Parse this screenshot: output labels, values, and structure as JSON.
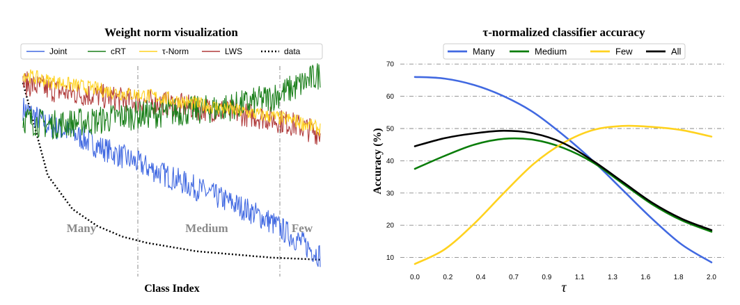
{
  "chart_data": [
    {
      "type": "line",
      "title": "Weight norm visualization",
      "xlabel": "Class Index",
      "ylabel": "",
      "legend": [
        "Joint",
        "cRT",
        "τ-Norm",
        "LWS",
        "data"
      ],
      "legend_position": "top",
      "regions": [
        "Many",
        "Medium",
        "Few"
      ],
      "colors": {
        "Joint": "#4169e1",
        "cRT": "#1a7f1a",
        "τ-Norm": "#ffd21f",
        "LWS": "#b03a3a",
        "data": "#000000"
      },
      "series": [
        {
          "name": "Joint",
          "trend": [
            0.8,
            0.72,
            0.68,
            0.62,
            0.57,
            0.52,
            0.47,
            0.42,
            0.37,
            0.32,
            0.26,
            0.18,
            0.1
          ],
          "noise": 0.06
        },
        {
          "name": "cRT",
          "trend": [
            0.75,
            0.72,
            0.73,
            0.74,
            0.76,
            0.77,
            0.78,
            0.79,
            0.8,
            0.82,
            0.85,
            0.9,
            0.96
          ],
          "noise": 0.07
        },
        {
          "name": "τ-Norm",
          "trend": [
            0.96,
            0.93,
            0.91,
            0.89,
            0.87,
            0.86,
            0.84,
            0.82,
            0.8,
            0.78,
            0.76,
            0.74,
            0.7
          ],
          "noise": 0.035
        },
        {
          "name": "LWS",
          "trend": [
            0.92,
            0.89,
            0.87,
            0.86,
            0.84,
            0.83,
            0.82,
            0.8,
            0.79,
            0.77,
            0.75,
            0.72,
            0.68
          ],
          "noise": 0.06
        },
        {
          "name": "data",
          "trend": [
            0.92,
            0.48,
            0.32,
            0.24,
            0.19,
            0.16,
            0.14,
            0.12,
            0.11,
            0.1,
            0.09,
            0.085,
            0.08
          ],
          "noise": 0
        }
      ]
    },
    {
      "type": "line",
      "title": "τ-normalized classifier accuracy",
      "xlabel": "τ",
      "ylabel": "Accuracy (%)",
      "legend_position": "top",
      "grid": true,
      "xlim": [
        0.0,
        2.0
      ],
      "ylim": [
        7,
        72
      ],
      "xticks": [
        "0.0",
        "0.2",
        "0.4",
        "0.7",
        "0.9",
        "1.1",
        "1.3",
        "1.6",
        "1.8",
        "2.0"
      ],
      "yticks": [
        "10",
        "20",
        "30",
        "40",
        "50",
        "60",
        "70"
      ],
      "x": [
        0.0,
        0.2,
        0.4,
        0.6,
        0.8,
        1.0,
        1.2,
        1.4,
        1.6,
        1.8,
        2.0
      ],
      "series": [
        {
          "name": "Many",
          "color": "#4169e1",
          "values": [
            66.0,
            65.5,
            63.5,
            60.0,
            55.0,
            48.0,
            40.0,
            31.0,
            22.0,
            14.0,
            8.5
          ]
        },
        {
          "name": "Medium",
          "color": "#0a7d0a",
          "values": [
            37.5,
            41.5,
            45.0,
            46.8,
            46.5,
            44.0,
            39.5,
            33.0,
            26.5,
            21.5,
            18.0
          ]
        },
        {
          "name": "Few",
          "color": "#ffd21f",
          "values": [
            8.0,
            12.5,
            20.5,
            30.0,
            39.0,
            45.5,
            49.5,
            50.8,
            50.5,
            49.5,
            47.5
          ]
        },
        {
          "name": "All",
          "color": "#000000",
          "values": [
            44.5,
            47.0,
            48.5,
            49.3,
            48.5,
            45.5,
            40.0,
            33.5,
            27.0,
            22.0,
            18.5
          ]
        }
      ]
    }
  ]
}
